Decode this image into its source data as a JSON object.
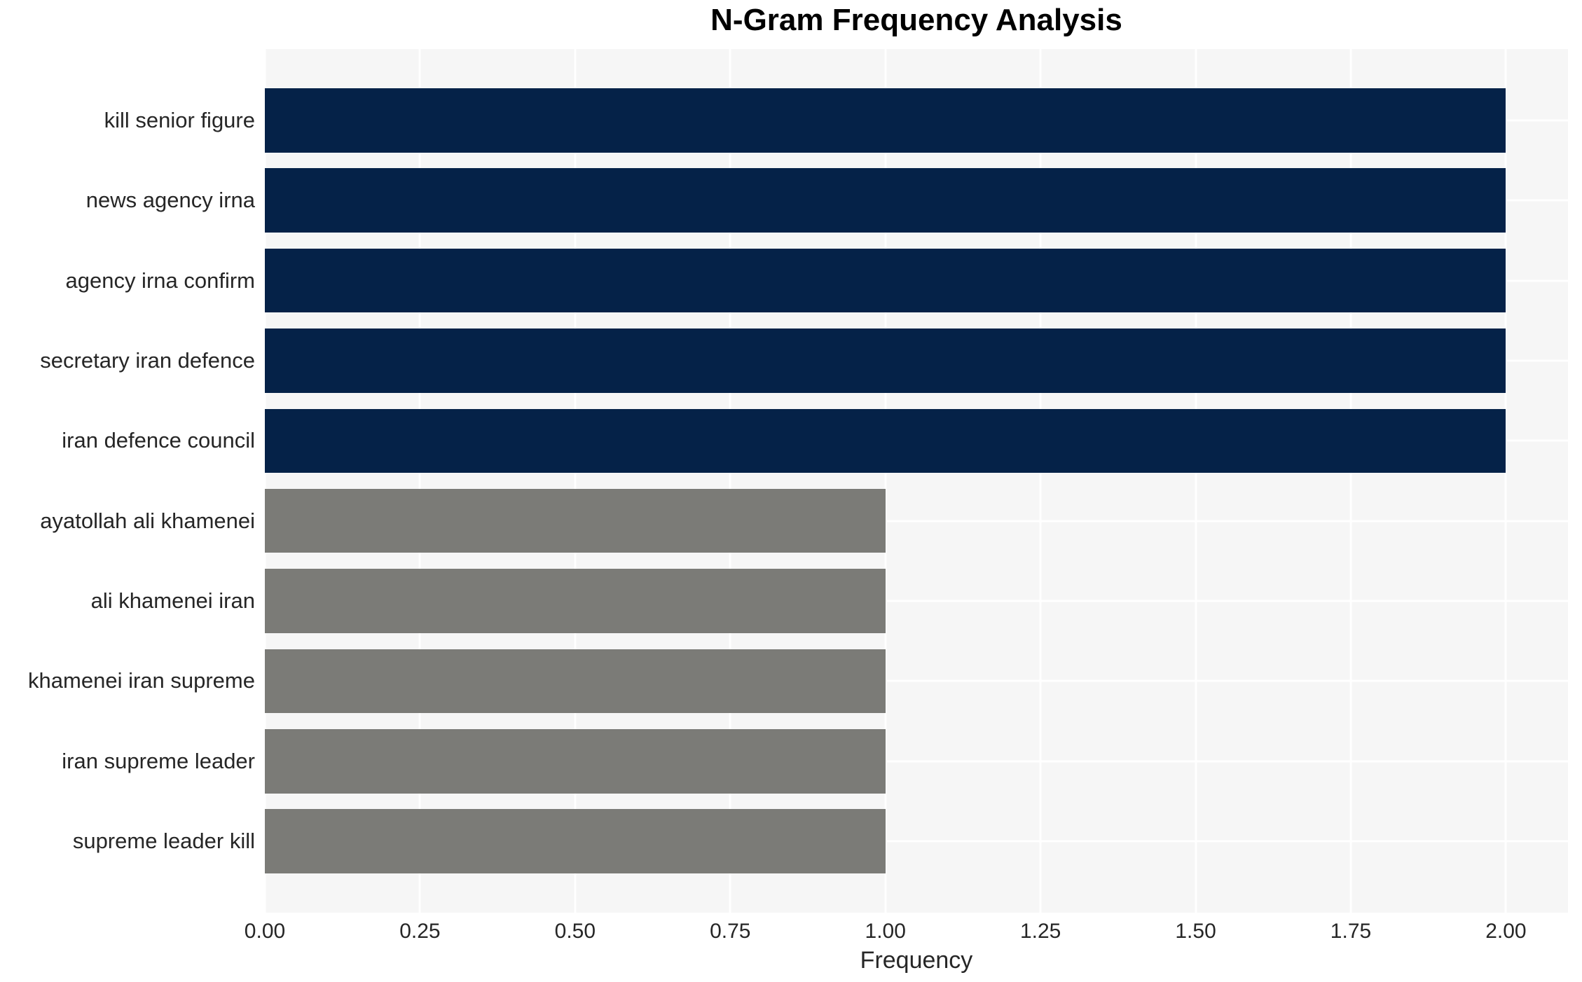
{
  "chart_data": {
    "type": "bar",
    "orientation": "horizontal",
    "title": "N-Gram Frequency Analysis",
    "xlabel": "Frequency",
    "ylabel": "",
    "categories": [
      "kill senior figure",
      "news agency irna",
      "agency irna confirm",
      "secretary iran defence",
      "iran defence council",
      "ayatollah ali khamenei",
      "ali khamenei iran",
      "khamenei iran supreme",
      "iran supreme leader",
      "supreme leader kill"
    ],
    "values": [
      2,
      2,
      2,
      2,
      2,
      1,
      1,
      1,
      1,
      1
    ],
    "bar_colors": [
      "#052248",
      "#052248",
      "#052248",
      "#052248",
      "#052248",
      "#7b7b77",
      "#7b7b77",
      "#7b7b77",
      "#7b7b77",
      "#7b7b77"
    ],
    "xlim": [
      0,
      2.1
    ],
    "xticks": [
      0,
      0.25,
      0.5,
      0.75,
      1.0,
      1.25,
      1.5,
      1.75,
      2.0
    ],
    "xtick_labels": [
      "0.00",
      "0.25",
      "0.50",
      "0.75",
      "1.00",
      "1.25",
      "1.50",
      "1.75",
      "2.00"
    ],
    "grid": true,
    "legend": false,
    "colors": {
      "high_bar": "#052248",
      "low_bar": "#7b7b77",
      "plot_background": "#f6f6f6",
      "gridline": "#ffffff",
      "tick_text": "#262626",
      "title_text": "#000000",
      "figure_background": "#ffffff"
    }
  }
}
